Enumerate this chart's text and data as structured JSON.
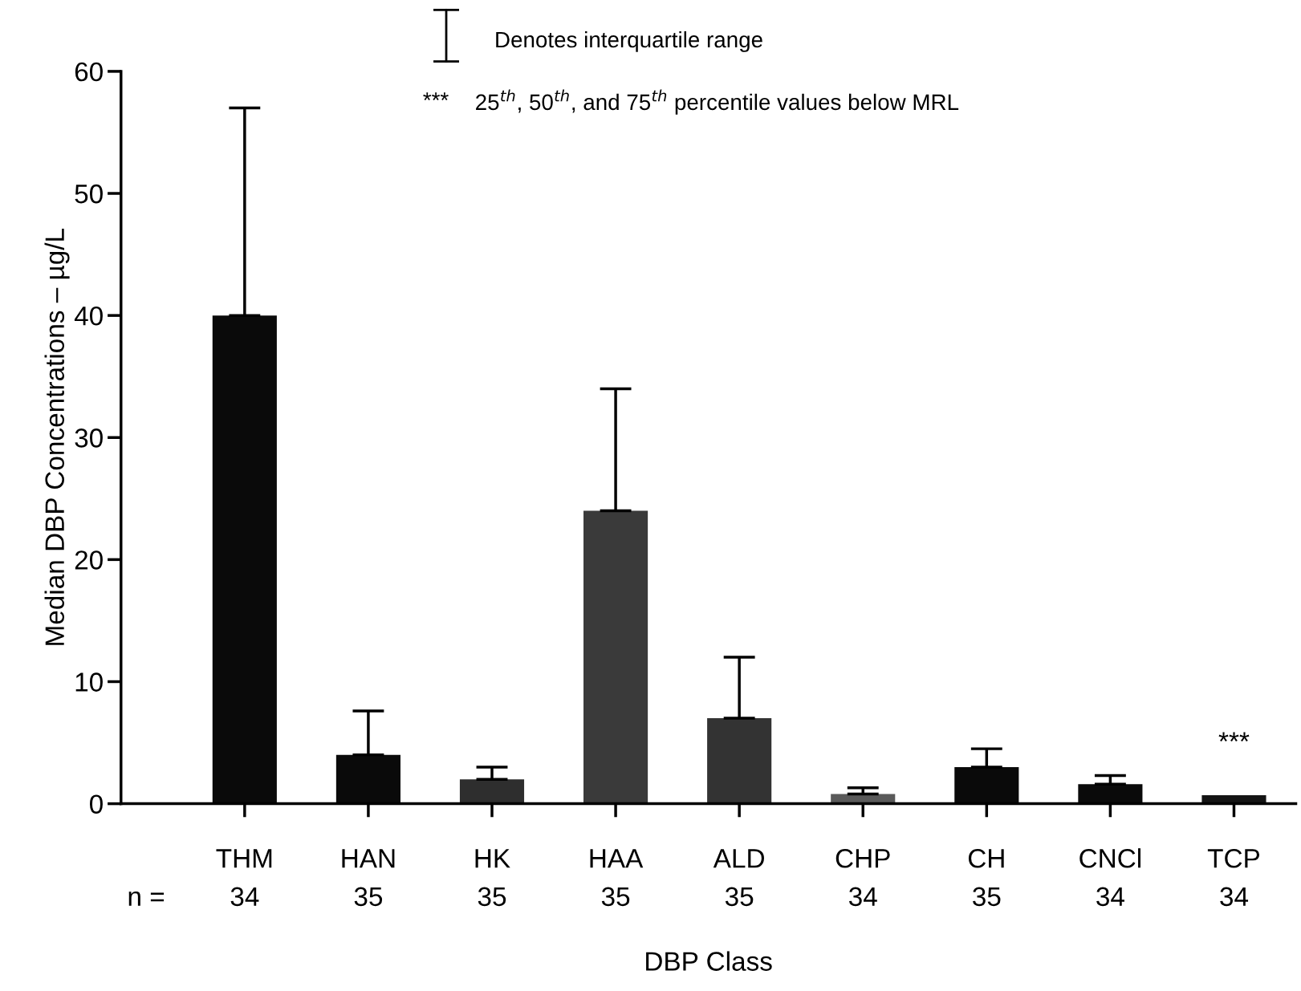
{
  "chart_data": {
    "type": "bar",
    "xlabel": "DBP Class",
    "ylabel": "Median DBP Concentrations – µg/L",
    "categories": [
      "THM",
      "HAN",
      "HK",
      "HAA",
      "ALD",
      "CHP",
      "CH",
      "CNCl",
      "TCP"
    ],
    "values": [
      40,
      4,
      2,
      24,
      7,
      0.8,
      3,
      1.6,
      0.7
    ],
    "errors": [
      [
        40,
        57
      ],
      [
        4,
        7.6
      ],
      [
        2,
        3
      ],
      [
        24,
        34
      ],
      [
        7,
        12
      ],
      [
        0.8,
        1.3
      ],
      [
        3,
        4.5
      ],
      [
        1.6,
        2.3
      ],
      null
    ],
    "colors": [
      "#0a0a0a",
      "#0a0a0a",
      "#2e2e2e",
      "#3a3a3a",
      "#333333",
      "#5a5a5a",
      "#0a0a0a",
      "#0a0a0a",
      "#141414"
    ],
    "ylim": [
      0,
      60
    ],
    "yticks": [
      0,
      10,
      20,
      30,
      40,
      50,
      60
    ],
    "grid": false,
    "legend": false,
    "annotations": [
      "Denotes interquartile range",
      "***",
      "25$^{th}$, 50$^{th}$, and 75$^{th}$ percentile values below MRL",
      "***",
      "n =",
      "34",
      "35",
      "35",
      "35",
      "35",
      "34",
      "35",
      "34",
      "34"
    ]
  }
}
